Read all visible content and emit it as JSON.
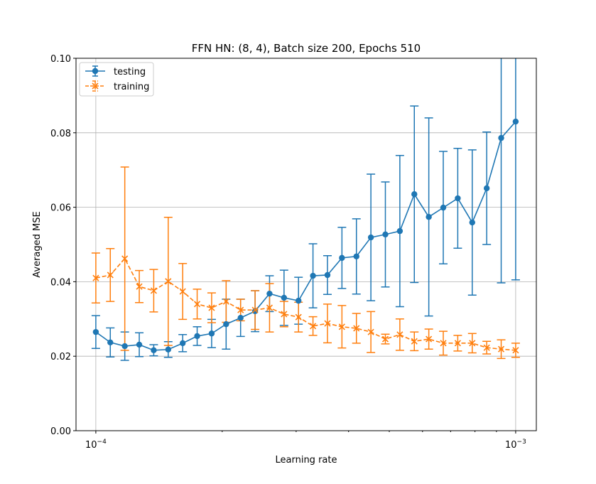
{
  "chart_data": {
    "type": "errorbar",
    "title": "FFN HN: (8, 4), Batch size 200, Epochs 510",
    "xlabel": "Learning rate",
    "ylabel": "Averaged MSE",
    "xscale": "log",
    "grid": true,
    "legend": "upper left",
    "x": [
      0.0001,
      0.00010826,
      0.00011721,
      0.0001269,
      0.00013738,
      0.00014874,
      0.00016103,
      0.00017433,
      0.00018874,
      0.00020434,
      0.00022122,
      0.0002395,
      0.00025929,
      0.00028072,
      0.00030392,
      0.00032903,
      0.00035622,
      0.00038566,
      0.00041753,
      0.00045204,
      0.00048939,
      0.00052983,
      0.00057362,
      0.00062102,
      0.00067234,
      0.0007279,
      0.00078805,
      0.00085317,
      0.00092367,
      0.001
    ],
    "series": [
      {
        "name": "testing",
        "color": "#1f77b4",
        "marker": "o",
        "linestyle": "solid",
        "values": [
          0.0265,
          0.0237,
          0.0227,
          0.0231,
          0.0216,
          0.0218,
          0.0235,
          0.0254,
          0.0261,
          0.0286,
          0.0303,
          0.0321,
          0.0368,
          0.0357,
          0.0349,
          0.0416,
          0.0418,
          0.0464,
          0.0468,
          0.0519,
          0.0527,
          0.0536,
          0.0635,
          0.0574,
          0.0599,
          0.0624,
          0.0559,
          0.0651,
          0.0786,
          0.083
        ],
        "errors": [
          0.0044,
          0.0039,
          0.0038,
          0.0032,
          0.0015,
          0.0021,
          0.0023,
          0.0025,
          0.0038,
          0.0067,
          0.005,
          0.0055,
          0.0048,
          0.0074,
          0.0063,
          0.0086,
          0.0052,
          0.0082,
          0.0101,
          0.017,
          0.0141,
          0.0203,
          0.0237,
          0.0266,
          0.0151,
          0.0134,
          0.0195,
          0.0151,
          0.0389,
          0.0425
        ]
      },
      {
        "name": "training",
        "color": "#ff7f0e",
        "marker": "x",
        "linestyle": "dashed",
        "values": [
          0.041,
          0.0418,
          0.0462,
          0.0387,
          0.0376,
          0.0401,
          0.0374,
          0.034,
          0.033,
          0.0347,
          0.0324,
          0.0324,
          0.033,
          0.0313,
          0.0305,
          0.0281,
          0.0288,
          0.0279,
          0.0275,
          0.0265,
          0.0246,
          0.0258,
          0.024,
          0.0246,
          0.0235,
          0.0235,
          0.0235,
          0.0223,
          0.0219,
          0.0216
        ],
        "errors": [
          0.0067,
          0.0071,
          0.0246,
          0.0043,
          0.0057,
          0.0172,
          0.0075,
          0.004,
          0.004,
          0.0056,
          0.0029,
          0.0052,
          0.0065,
          0.0034,
          0.004,
          0.0025,
          0.0052,
          0.0057,
          0.004,
          0.0055,
          0.0013,
          0.0042,
          0.0025,
          0.0027,
          0.0032,
          0.0021,
          0.0026,
          0.0017,
          0.0025,
          0.0019
        ]
      }
    ],
    "xlim": [
      8.97e-05,
      0.00112
    ],
    "ylim": [
      0,
      0.1
    ],
    "xticks": [
      {
        "value": 0.0001,
        "label": "10−4"
      },
      {
        "value": 0.001,
        "label": "10−3"
      }
    ],
    "xminorticks": [
      0.0002,
      0.0003,
      0.0004,
      0.0005,
      0.0006,
      0.0007,
      0.0008,
      0.0009
    ],
    "yticks": [
      {
        "value": 0,
        "label": "0.00"
      },
      {
        "value": 0.02,
        "label": "0.02"
      },
      {
        "value": 0.04,
        "label": "0.04"
      },
      {
        "value": 0.06,
        "label": "0.06"
      },
      {
        "value": 0.08,
        "label": "0.08"
      },
      {
        "value": 0.1,
        "label": "0.10"
      }
    ]
  }
}
